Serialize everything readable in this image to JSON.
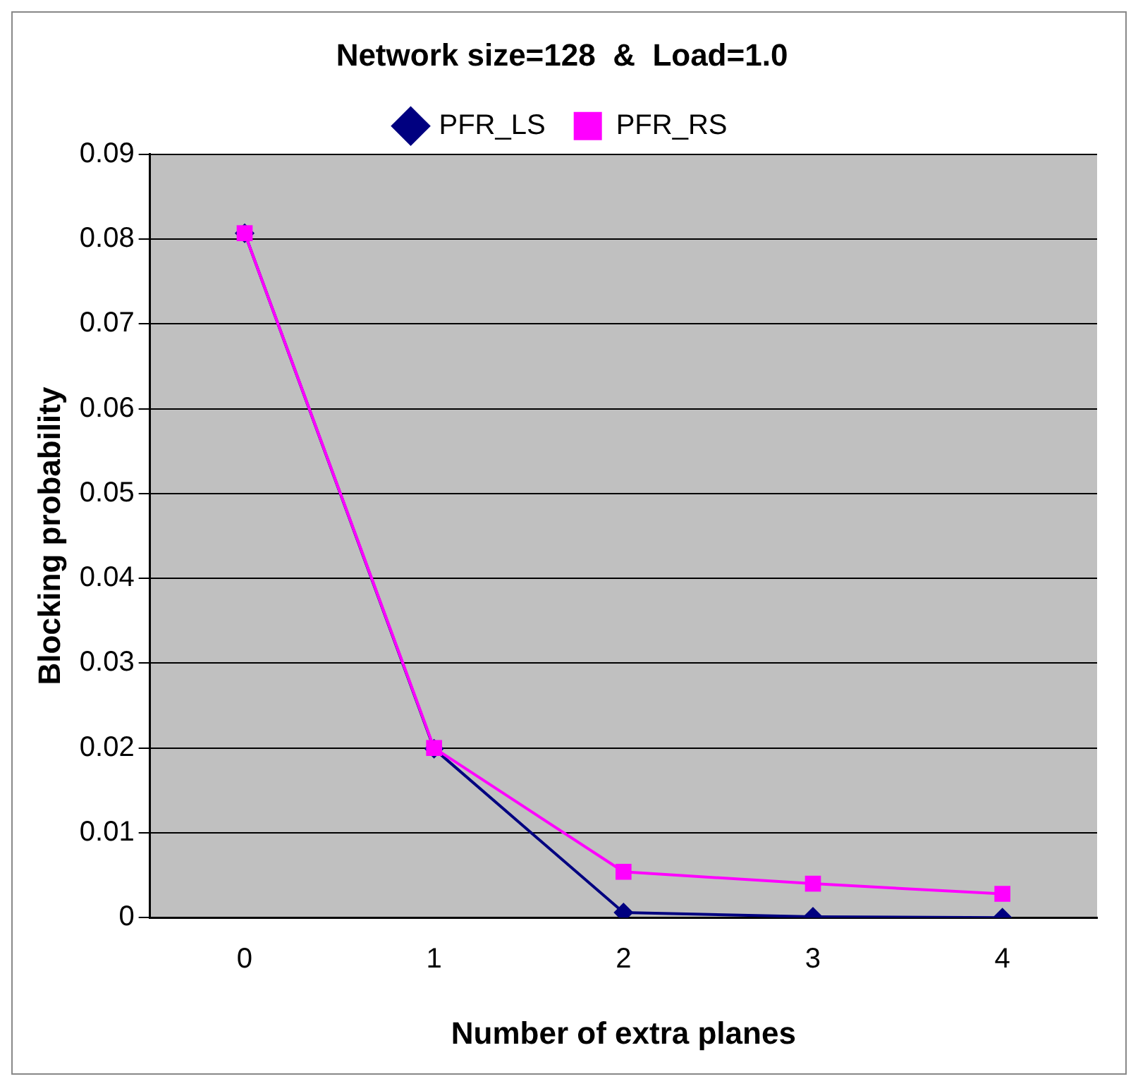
{
  "chart_data": {
    "type": "line",
    "title": "Network size=128  &  Load=1.0",
    "xlabel": "Number of extra planes",
    "ylabel": "Blocking probability",
    "categories": [
      "0",
      "1",
      "2",
      "3",
      "4"
    ],
    "series": [
      {
        "name": "PFR_LS",
        "color": "#000080",
        "marker": "diamond",
        "values": [
          0.0807,
          0.0199,
          0.0006,
          0.0001,
          0.0
        ]
      },
      {
        "name": "PFR_RS",
        "color": "#ff00ff",
        "marker": "square",
        "values": [
          0.0807,
          0.02,
          0.0054,
          0.004,
          0.0028
        ]
      }
    ],
    "ylim": [
      0,
      0.09
    ],
    "yticks": [
      0,
      0.01,
      0.02,
      0.03,
      0.04,
      0.05,
      0.06,
      0.07,
      0.08,
      0.09
    ],
    "grid": "y",
    "legend": "top",
    "line_style": "solid"
  }
}
